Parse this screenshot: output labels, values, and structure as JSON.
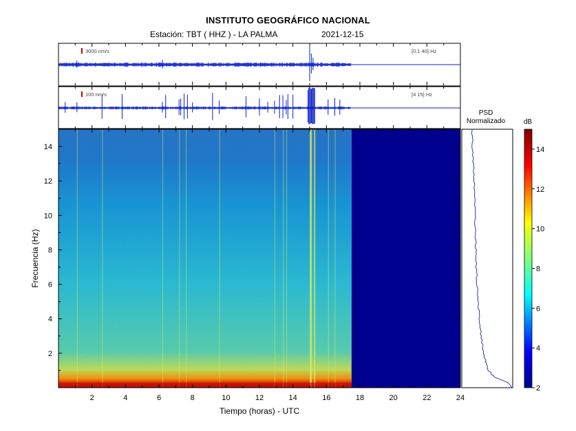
{
  "header": {
    "title": "INSTITUTO GEOGRÁFICO NACIONAL",
    "station": "Estación:  TBT ( HHZ ) - LA PALMA",
    "date": "2021-12-15"
  },
  "chart_data": {
    "type": "heatmap",
    "xlabel": "Tiempo (horas) - UTC",
    "ylabel": "Frecuencia  (Hz)",
    "xlim": [
      0,
      24
    ],
    "ylim": [
      0,
      15
    ],
    "x_ticks": [
      2,
      4,
      6,
      8,
      10,
      12,
      14,
      16,
      18,
      20,
      22,
      24
    ],
    "y_ticks": [
      2,
      4,
      6,
      8,
      10,
      12,
      14
    ],
    "data_end_hour": 17.5,
    "traces": [
      {
        "scale_label": "3000  nm/s",
        "band_label": "[0.1 40]  Hz"
      },
      {
        "scale_label": "100  nm/s",
        "band_label": "[4 15]  Hz"
      }
    ],
    "psd": {
      "title_line1": "PSD",
      "title_line2": "Normalizado",
      "freq": [
        0,
        0.3,
        0.6,
        1,
        1.5,
        2,
        3,
        4,
        5,
        6,
        7,
        8,
        9,
        10,
        11,
        12,
        13,
        14,
        15
      ],
      "level": [
        1.0,
        0.92,
        0.6,
        0.45,
        0.38,
        0.33,
        0.27,
        0.22,
        0.2,
        0.17,
        0.15,
        0.14,
        0.13,
        0.12,
        0.11,
        0.1,
        0.08,
        0.06,
        0.05
      ]
    },
    "colorbar": {
      "label": "dB",
      "range": [
        2,
        15
      ],
      "ticks": [
        2,
        4,
        6,
        8,
        10,
        12,
        14
      ]
    }
  }
}
